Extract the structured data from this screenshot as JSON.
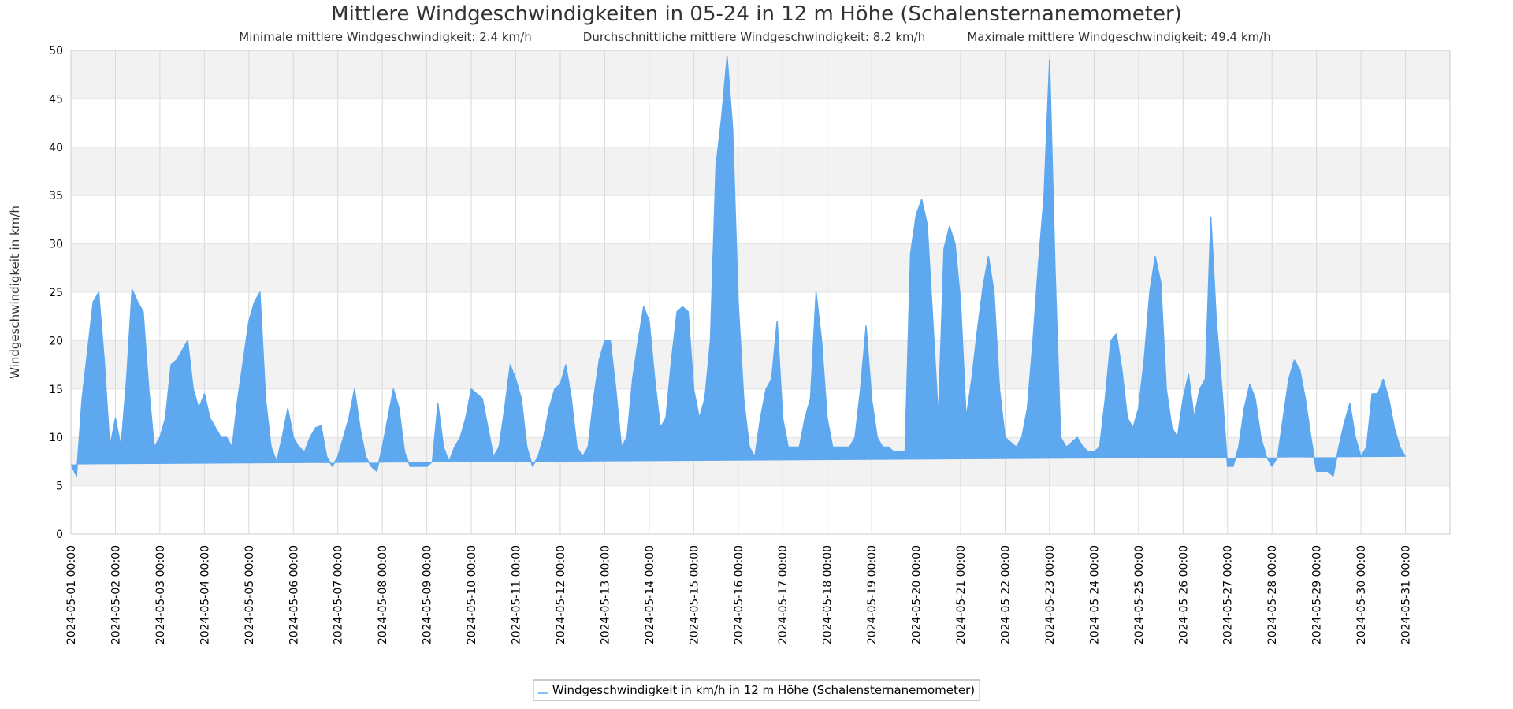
{
  "chart_data": {
    "type": "line",
    "title": "Mittlere Windgeschwindigkeiten in 05-24 in 12 m Höhe (Schalensternanemometer)",
    "subtitle": {
      "min": "Minimale mittlere Windgeschwindigkeit: 2.4 km/h",
      "avg": "Durchschnittliche mittlere Windgeschwindigkeit: 8.2 km/h",
      "max": "Maximale mittlere Windgeschwindigkeit: 49.4 km/h"
    },
    "ylabel": "Windgeschwindigkeit in km/h",
    "xlabel": "",
    "ylim": [
      0,
      50
    ],
    "xlim": [
      "2024-05-01 00:00",
      "2024-06-01 00:00"
    ],
    "yticks": [
      0,
      5,
      10,
      15,
      20,
      25,
      30,
      35,
      40,
      45,
      50
    ],
    "xticks": [
      "2024-05-01 00:00",
      "2024-05-02 00:00",
      "2024-05-03 00:00",
      "2024-05-04 00:00",
      "2024-05-05 00:00",
      "2024-05-06 00:00",
      "2024-05-07 00:00",
      "2024-05-08 00:00",
      "2024-05-09 00:00",
      "2024-05-10 00:00",
      "2024-05-11 00:00",
      "2024-05-12 00:00",
      "2024-05-13 00:00",
      "2024-05-14 00:00",
      "2024-05-15 00:00",
      "2024-05-16 00:00",
      "2024-05-17 00:00",
      "2024-05-18 00:00",
      "2024-05-19 00:00",
      "2024-05-20 00:00",
      "2024-05-21 00:00",
      "2024-05-22 00:00",
      "2024-05-23 00:00",
      "2024-05-24 00:00",
      "2024-05-25 00:00",
      "2024-05-26 00:00",
      "2024-05-27 00:00",
      "2024-05-28 00:00",
      "2024-05-29 00:00",
      "2024-05-30 00:00",
      "2024-05-31 00:00"
    ],
    "grid": true,
    "legend_position": "bottom-center",
    "series": [
      {
        "name": "Windgeschwindigkeit in km/h in 12 m Höhe (Schalensternanemometer)",
        "color": "#5ea8f0",
        "x": [
          "2024-05-01 00:00",
          "2024-05-01 03:00",
          "2024-05-01 06:00",
          "2024-05-01 09:00",
          "2024-05-01 12:00",
          "2024-05-01 15:00",
          "2024-05-01 18:00",
          "2024-05-01 21:00",
          "2024-05-02 00:00",
          "2024-05-02 03:00",
          "2024-05-02 06:00",
          "2024-05-02 09:00",
          "2024-05-02 12:00",
          "2024-05-02 15:00",
          "2024-05-02 18:00",
          "2024-05-02 21:00",
          "2024-05-03 00:00",
          "2024-05-03 03:00",
          "2024-05-03 06:00",
          "2024-05-03 09:00",
          "2024-05-03 12:00",
          "2024-05-03 15:00",
          "2024-05-03 18:00",
          "2024-05-03 21:00",
          "2024-05-04 00:00",
          "2024-05-04 03:00",
          "2024-05-04 06:00",
          "2024-05-04 09:00",
          "2024-05-04 12:00",
          "2024-05-04 15:00",
          "2024-05-04 18:00",
          "2024-05-04 21:00",
          "2024-05-05 00:00",
          "2024-05-05 03:00",
          "2024-05-05 06:00",
          "2024-05-05 09:00",
          "2024-05-05 12:00",
          "2024-05-05 15:00",
          "2024-05-05 18:00",
          "2024-05-05 21:00",
          "2024-05-06 00:00",
          "2024-05-06 03:00",
          "2024-05-06 06:00",
          "2024-05-06 09:00",
          "2024-05-06 12:00",
          "2024-05-06 15:00",
          "2024-05-06 18:00",
          "2024-05-06 21:00",
          "2024-05-07 00:00",
          "2024-05-07 03:00",
          "2024-05-07 06:00",
          "2024-05-07 09:00",
          "2024-05-07 12:00",
          "2024-05-07 15:00",
          "2024-05-07 18:00",
          "2024-05-07 21:00",
          "2024-05-08 00:00",
          "2024-05-08 03:00",
          "2024-05-08 06:00",
          "2024-05-08 09:00",
          "2024-05-08 12:00",
          "2024-05-08 15:00",
          "2024-05-08 18:00",
          "2024-05-08 21:00",
          "2024-05-09 00:00",
          "2024-05-09 03:00",
          "2024-05-09 06:00",
          "2024-05-09 09:00",
          "2024-05-09 12:00",
          "2024-05-09 15:00",
          "2024-05-09 18:00",
          "2024-05-09 21:00",
          "2024-05-10 00:00",
          "2024-05-10 03:00",
          "2024-05-10 06:00",
          "2024-05-10 09:00",
          "2024-05-10 12:00",
          "2024-05-10 15:00",
          "2024-05-10 18:00",
          "2024-05-10 21:00",
          "2024-05-11 00:00",
          "2024-05-11 03:00",
          "2024-05-11 06:00",
          "2024-05-11 09:00",
          "2024-05-11 12:00",
          "2024-05-11 15:00",
          "2024-05-11 18:00",
          "2024-05-11 21:00",
          "2024-05-12 00:00",
          "2024-05-12 03:00",
          "2024-05-12 06:00",
          "2024-05-12 09:00",
          "2024-05-12 12:00",
          "2024-05-12 15:00",
          "2024-05-12 18:00",
          "2024-05-12 21:00",
          "2024-05-13 00:00",
          "2024-05-13 03:00",
          "2024-05-13 06:00",
          "2024-05-13 09:00",
          "2024-05-13 12:00",
          "2024-05-13 15:00",
          "2024-05-13 18:00",
          "2024-05-13 21:00",
          "2024-05-14 00:00",
          "2024-05-14 03:00",
          "2024-05-14 06:00",
          "2024-05-14 09:00",
          "2024-05-14 12:00",
          "2024-05-14 15:00",
          "2024-05-14 18:00",
          "2024-05-14 21:00",
          "2024-05-15 00:00",
          "2024-05-15 03:00",
          "2024-05-15 06:00",
          "2024-05-15 09:00",
          "2024-05-15 12:00",
          "2024-05-15 15:00",
          "2024-05-15 18:00",
          "2024-05-15 21:00",
          "2024-05-16 00:00",
          "2024-05-16 03:00",
          "2024-05-16 06:00",
          "2024-05-16 09:00",
          "2024-05-16 12:00",
          "2024-05-16 15:00",
          "2024-05-16 18:00",
          "2024-05-16 21:00",
          "2024-05-17 00:00",
          "2024-05-17 03:00",
          "2024-05-17 06:00",
          "2024-05-17 09:00",
          "2024-05-17 12:00",
          "2024-05-17 15:00",
          "2024-05-17 18:00",
          "2024-05-17 21:00",
          "2024-05-18 00:00",
          "2024-05-18 03:00",
          "2024-05-18 06:00",
          "2024-05-18 09:00",
          "2024-05-18 12:00",
          "2024-05-18 15:00",
          "2024-05-18 18:00",
          "2024-05-18 21:00",
          "2024-05-19 00:00",
          "2024-05-19 03:00",
          "2024-05-19 06:00",
          "2024-05-19 09:00",
          "2024-05-19 12:00",
          "2024-05-19 15:00",
          "2024-05-19 18:00",
          "2024-05-19 21:00",
          "2024-05-20 00:00",
          "2024-05-20 03:00",
          "2024-05-20 06:00",
          "2024-05-20 09:00",
          "2024-05-20 12:00",
          "2024-05-20 15:00",
          "2024-05-20 18:00",
          "2024-05-20 21:00",
          "2024-05-21 00:00",
          "2024-05-21 03:00",
          "2024-05-21 06:00",
          "2024-05-21 09:00",
          "2024-05-21 12:00",
          "2024-05-21 15:00",
          "2024-05-21 18:00",
          "2024-05-21 21:00",
          "2024-05-22 00:00",
          "2024-05-22 03:00",
          "2024-05-22 06:00",
          "2024-05-22 09:00",
          "2024-05-22 12:00",
          "2024-05-22 15:00",
          "2024-05-22 18:00",
          "2024-05-22 21:00",
          "2024-05-23 00:00",
          "2024-05-23 03:00",
          "2024-05-23 06:00",
          "2024-05-23 09:00",
          "2024-05-23 12:00",
          "2024-05-23 15:00",
          "2024-05-23 18:00",
          "2024-05-23 21:00",
          "2024-05-24 00:00",
          "2024-05-24 03:00",
          "2024-05-24 06:00",
          "2024-05-24 09:00",
          "2024-05-24 12:00",
          "2024-05-24 15:00",
          "2024-05-24 18:00",
          "2024-05-24 21:00",
          "2024-05-25 00:00",
          "2024-05-25 03:00",
          "2024-05-25 06:00",
          "2024-05-25 09:00",
          "2024-05-25 12:00",
          "2024-05-25 15:00",
          "2024-05-25 18:00",
          "2024-05-25 21:00",
          "2024-05-26 00:00",
          "2024-05-26 03:00",
          "2024-05-26 06:00",
          "2024-05-26 09:00",
          "2024-05-26 12:00",
          "2024-05-26 15:00",
          "2024-05-26 18:00",
          "2024-05-26 21:00",
          "2024-05-27 00:00",
          "2024-05-27 03:00",
          "2024-05-27 06:00",
          "2024-05-27 09:00",
          "2024-05-27 12:00",
          "2024-05-27 15:00",
          "2024-05-27 18:00",
          "2024-05-27 21:00",
          "2024-05-28 00:00",
          "2024-05-28 03:00",
          "2024-05-28 06:00",
          "2024-05-28 09:00",
          "2024-05-28 12:00",
          "2024-05-28 15:00",
          "2024-05-28 18:00",
          "2024-05-28 21:00",
          "2024-05-29 00:00",
          "2024-05-29 03:00",
          "2024-05-29 06:00",
          "2024-05-29 09:00",
          "2024-05-29 12:00",
          "2024-05-29 15:00",
          "2024-05-29 18:00",
          "2024-05-29 21:00",
          "2024-05-30 00:00",
          "2024-05-30 03:00",
          "2024-05-30 06:00",
          "2024-05-30 09:00",
          "2024-05-30 12:00",
          "2024-05-30 15:00",
          "2024-05-30 18:00",
          "2024-05-30 21:00",
          "2024-05-31 00:00",
          "2024-05-31 03:00",
          "2024-05-31 06:00",
          "2024-05-31 09:00",
          "2024-05-31 12:00",
          "2024-05-31 15:00",
          "2024-05-31 18:00",
          "2024-05-31 21:00",
          "2024-06-01 00:00"
        ],
        "min": [
          3.2,
          3.0,
          4.5,
          9.0,
          11.5,
          9.5,
          6.0,
          4.5,
          4.0,
          3.5,
          6.0,
          10.0,
          12.5,
          11.0,
          8.0,
          4.5,
          3.8,
          3.8,
          4.8,
          6.0,
          6.5,
          5.5,
          4.5,
          4.0,
          3.8,
          3.5,
          3.5,
          3.8,
          3.5,
          3.0,
          3.2,
          4.0,
          4.5,
          4.0,
          4.0,
          3.2,
          3.2,
          3.0,
          3.2,
          3.2,
          3.5,
          3.0,
          3.0,
          3.2,
          3.0,
          3.0,
          2.8,
          3.0,
          3.0,
          3.0,
          3.2,
          3.5,
          3.5,
          3.0,
          3.0,
          3.0,
          3.5,
          3.5,
          3.0,
          2.8,
          3.0,
          3.0,
          3.2,
          3.5,
          3.5,
          3.2,
          2.8,
          2.5,
          2.8,
          3.0,
          3.0,
          2.8,
          2.6,
          2.5,
          2.6,
          2.8,
          3.0,
          2.8,
          2.6,
          2.8,
          3.0,
          3.0,
          3.2,
          3.5,
          3.5,
          3.2,
          3.0,
          3.5,
          4.0,
          4.0,
          3.5,
          3.2,
          3.2,
          3.2,
          3.5,
          3.5,
          3.5,
          3.5,
          3.2,
          3.0,
          2.8,
          2.8,
          3.0,
          3.5,
          4.0,
          4.0,
          3.5,
          3.0,
          2.8,
          2.8,
          3.0,
          3.2,
          3.2,
          3.0,
          2.8,
          3.0,
          3.5,
          4.0,
          5.0,
          5.5,
          5.0,
          4.5,
          4.0,
          4.0,
          4.0,
          5.0,
          6.0,
          5.0,
          4.0,
          4.0,
          4.0,
          4.5,
          5.5,
          8.0,
          10.0,
          7.0,
          4.5,
          4.0,
          4.0,
          4.0,
          4.0,
          4.5,
          4.5,
          4.2,
          4.0,
          3.8,
          3.5,
          3.5,
          3.5,
          3.5,
          3.8,
          3.8,
          3.8,
          3.8,
          4.0,
          4.0,
          4.0,
          4.5,
          5.0,
          4.5,
          4.5,
          5.0,
          5.5,
          6.0,
          7.5,
          7.5,
          7.5,
          8.0,
          5.0,
          4.5,
          4.5,
          5.0,
          5.5,
          6.0,
          5.0,
          4.5,
          4.2,
          4.0,
          4.5,
          5.5,
          6.5,
          5.0,
          4.5,
          4.5,
          4.5,
          4.5,
          4.5,
          5.0,
          5.5,
          6.0,
          6.0,
          5.5,
          5.0,
          4.5,
          4.2,
          4.0,
          4.0,
          4.0,
          4.0,
          4.0,
          4.0,
          4.5,
          5.0,
          5.5,
          4.5,
          4.0,
          4.0,
          4.0,
          4.5,
          5.0,
          5.0,
          4.5,
          4.2,
          4.0,
          4.0,
          4.0,
          4.0,
          4.5,
          4.5,
          4.5,
          4.2,
          4.0,
          3.5,
          3.0,
          2.8,
          3.0,
          3.2,
          3.5,
          3.5,
          3.0,
          2.8,
          2.8,
          2.8,
          3.0,
          2.8,
          2.6,
          2.5,
          2.6,
          2.8,
          3.0,
          3.0,
          2.8,
          2.6,
          2.6,
          2.8,
          3.0,
          3.5,
          3.5,
          3.2,
          3.0,
          2.8
        ],
        "max": [
          7.2,
          6.0,
          14.0,
          19.0,
          24.0,
          25.0,
          18.0,
          9.0,
          12.0,
          9.0,
          16.0,
          25.3,
          24.0,
          23.0,
          15.0,
          9.0,
          10.0,
          12.0,
          17.5,
          18.0,
          19.0,
          20.0,
          15.0,
          13.0,
          14.5,
          12.0,
          11.0,
          10.0,
          10.0,
          9.0,
          14.0,
          18.0,
          22.0,
          24.0,
          25.0,
          14.0,
          9.0,
          7.5,
          10.0,
          13.0,
          10.0,
          9.0,
          8.5,
          10.0,
          11.0,
          11.2,
          8.0,
          7.0,
          8.0,
          10.0,
          12.0,
          15.0,
          11.0,
          8.0,
          7.0,
          6.5,
          9.0,
          12.0,
          15.0,
          13.0,
          8.5,
          7.0,
          7.0,
          7.0,
          7.0,
          7.5,
          13.5,
          9.0,
          7.5,
          9.0,
          10.0,
          12.0,
          15.0,
          14.5,
          14.0,
          11.0,
          8.0,
          9.0,
          13.0,
          17.5,
          16.0,
          14.0,
          9.0,
          7.0,
          8.0,
          10.0,
          13.0,
          15.0,
          15.5,
          17.5,
          14.0,
          9.0,
          8.0,
          9.0,
          14.0,
          18.0,
          20.0,
          20.0,
          15.0,
          9.0,
          10.0,
          16.0,
          20.0,
          23.5,
          22.0,
          16.0,
          11.0,
          12.0,
          18.0,
          23.0,
          23.5,
          23.0,
          15.0,
          12.0,
          14.0,
          20.0,
          38.0,
          43.0,
          49.4,
          42.0,
          24.0,
          14.0,
          9.0,
          8.0,
          12.0,
          15.0,
          16.0,
          22.0,
          12.0,
          9.0,
          9.0,
          9.0,
          12.0,
          14.0,
          25.0,
          20.0,
          12.0,
          9.0,
          9.0,
          9.0,
          9.0,
          10.0,
          15.0,
          21.5,
          14.0,
          10.0,
          9.0,
          9.0,
          8.5,
          8.5,
          8.5,
          29.0,
          33.0,
          34.6,
          32.0,
          22.0,
          12.0,
          29.5,
          31.8,
          30.0,
          24.0,
          12.0,
          16.0,
          21.0,
          25.5,
          28.7,
          25.0,
          15.0,
          10.0,
          9.5,
          9.0,
          10.0,
          13.0,
          20.0,
          28.0,
          35.0,
          49.0,
          27.0,
          10.0,
          9.0,
          9.5,
          10.0,
          9.0,
          8.5,
          8.5,
          9.0,
          14.0,
          20.0,
          20.7,
          17.0,
          12.0,
          11.0,
          13.0,
          18.0,
          25.0,
          28.7,
          26.0,
          15.0,
          11.0,
          10.0,
          14.0,
          16.5,
          12.0,
          15.0,
          16.0,
          32.8,
          22.0,
          15.0,
          7.0,
          7.0,
          9.0,
          13.0,
          15.5,
          14.0,
          10.0,
          8.0,
          7.0,
          8.0,
          12.0,
          16.0,
          18.0,
          17.0,
          14.0,
          10.0,
          6.5,
          6.5,
          6.5,
          6.0,
          9.0,
          11.5,
          13.5,
          10.0,
          8.0,
          9.0,
          14.5,
          14.5,
          16.0,
          14.0,
          11.0,
          9.0,
          8.0
        ]
      }
    ]
  }
}
